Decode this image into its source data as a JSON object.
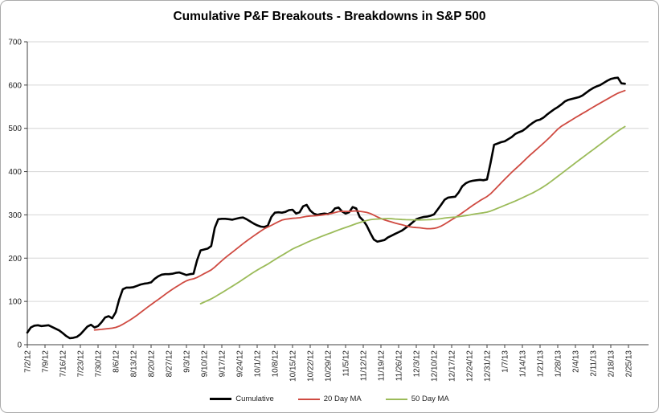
{
  "chart_data": {
    "type": "line",
    "title": "Cumulative P&F Breakouts - Breakdowns in S&P 500",
    "xlabel": "",
    "ylabel": "",
    "y_axis": {
      "min": 0,
      "max": 700,
      "step": 100
    },
    "y_tick_labels": [
      "0",
      "100",
      "200",
      "300",
      "400",
      "500",
      "600",
      "700"
    ],
    "x_tick_labels": [
      "7/2/12",
      "7/9/12",
      "7/16/12",
      "7/23/12",
      "7/30/12",
      "8/6/12",
      "8/13/12",
      "8/20/12",
      "8/27/12",
      "9/3/12",
      "9/10/12",
      "9/17/12",
      "9/24/12",
      "10/1/12",
      "10/8/12",
      "10/15/12",
      "10/22/12",
      "10/29/12",
      "11/5/12",
      "11/12/12",
      "11/19/12",
      "11/26/12",
      "12/3/12",
      "12/10/12",
      "12/17/12",
      "12/24/12",
      "12/31/12",
      "1/7/13",
      "1/14/13",
      "1/21/13",
      "1/28/13",
      "2/4/13",
      "2/11/13",
      "2/18/13",
      "2/25/13"
    ],
    "x_points_per_tick": 5,
    "grid": "horizontal",
    "legend_position": "bottom",
    "series": [
      {
        "name": "Cumulative",
        "color": "#000000",
        "width": 2.6,
        "values": [
          28,
          40,
          44,
          45,
          43,
          44,
          45,
          41,
          37,
          33,
          27,
          20,
          15,
          16,
          18,
          24,
          33,
          42,
          46,
          40,
          43,
          52,
          63,
          66,
          61,
          75,
          105,
          128,
          132,
          132,
          133,
          136,
          139,
          141,
          142,
          144,
          152,
          158,
          162,
          163,
          163,
          164,
          166,
          167,
          164,
          161,
          163,
          164,
          195,
          218,
          220,
          222,
          228,
          270,
          290,
          291,
          291,
          290,
          289,
          291,
          293,
          294,
          290,
          285,
          280,
          276,
          273,
          272,
          275,
          295,
          305,
          306,
          305,
          307,
          311,
          312,
          303,
          306,
          320,
          323,
          310,
          303,
          300,
          302,
          303,
          302,
          305,
          315,
          317,
          308,
          303,
          306,
          318,
          315,
          295,
          287,
          275,
          258,
          243,
          238,
          240,
          242,
          248,
          252,
          256,
          260,
          264,
          270,
          276,
          283,
          290,
          293,
          295,
          296,
          298,
          301,
          312,
          323,
          335,
          340,
          341,
          342,
          352,
          366,
          373,
          377,
          379,
          380,
          381,
          380,
          382,
          420,
          462,
          465,
          468,
          470,
          475,
          480,
          487,
          491,
          494,
          500,
          507,
          513,
          518,
          520,
          525,
          532,
          538,
          544,
          549,
          555,
          562,
          566,
          568,
          570,
          572,
          576,
          582,
          588,
          593,
          597,
          600,
          605,
          610,
          614,
          616,
          617,
          604,
          603
        ]
      },
      {
        "name": "20 Day MA",
        "color": "#CF4A41",
        "width": 1.8,
        "derived": "moving_average",
        "window": 20,
        "of": "Cumulative"
      },
      {
        "name": "50 Day MA",
        "color": "#9BBB59",
        "width": 1.8,
        "derived": "moving_average",
        "window": 50,
        "of": "Cumulative"
      }
    ]
  }
}
